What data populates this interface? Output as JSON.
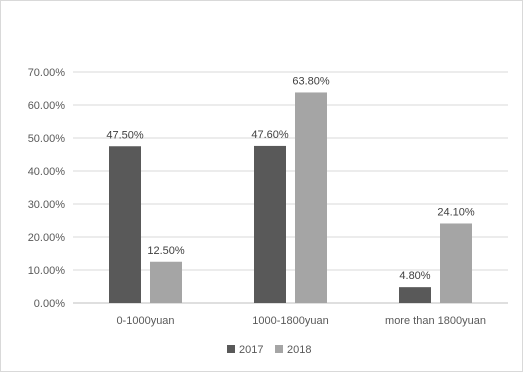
{
  "chart_data": {
    "type": "bar",
    "categories": [
      "0-1000yuan",
      "1000-1800yuan",
      "more than 1800yuan"
    ],
    "series": [
      {
        "name": "2017",
        "values": [
          47.5,
          47.6,
          4.8
        ],
        "labels": [
          "47.50%",
          "47.60%",
          "4.80%"
        ],
        "color": "#595959"
      },
      {
        "name": "2018",
        "values": [
          12.5,
          63.8,
          24.1
        ],
        "labels": [
          "12.50%",
          "63.80%",
          "24.10%"
        ],
        "color": "#a5a5a5"
      }
    ],
    "yticks": [
      "0.00%",
      "10.00%",
      "20.00%",
      "30.00%",
      "40.00%",
      "50.00%",
      "60.00%",
      "70.00%"
    ],
    "ylim": [
      0,
      70
    ],
    "grid": true,
    "legend_position": "bottom",
    "title": "",
    "xlabel": "",
    "ylabel": ""
  }
}
